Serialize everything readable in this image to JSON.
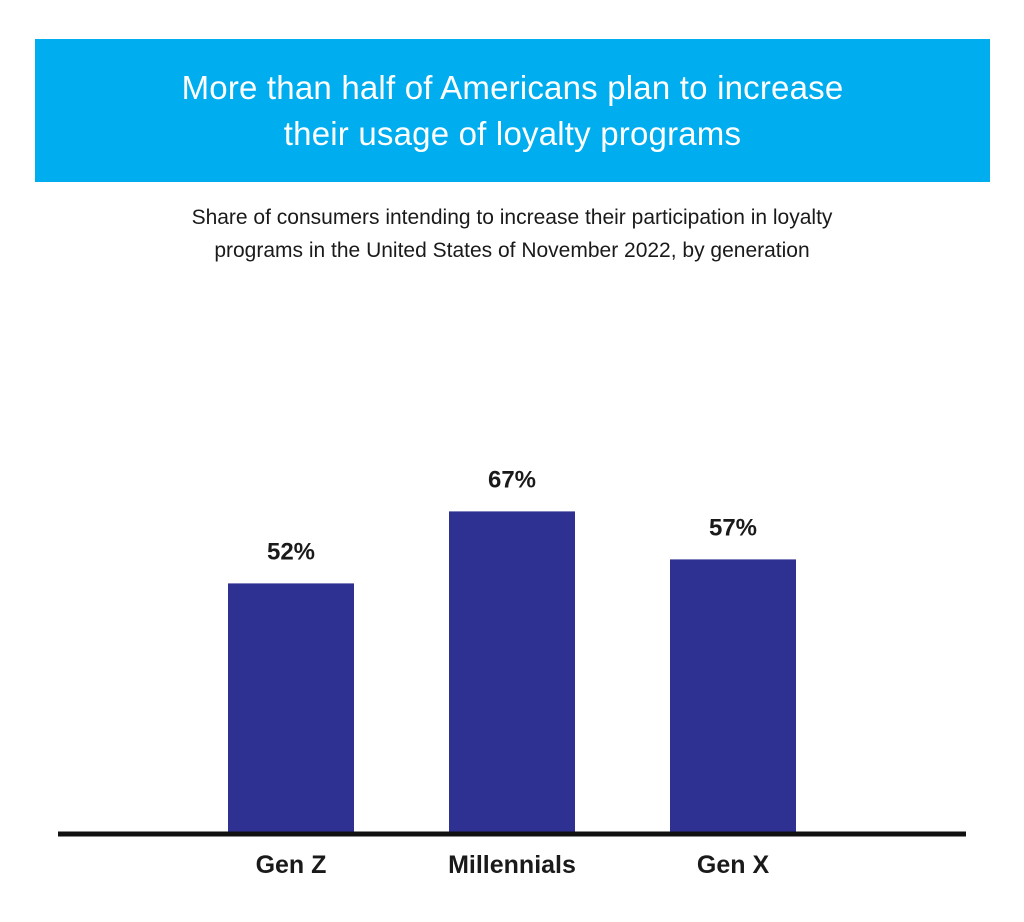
{
  "header": {
    "title_line1": "More than half of Americans plan to increase",
    "title_line2": "their usage of loyalty programs",
    "subtitle_line1": "Share of consumers intending to increase their participation in loyalty",
    "subtitle_line2": "programs in the United States of November 2022, by generation"
  },
  "colors": {
    "banner": "#00aeef",
    "bar": "#2e3192",
    "axis": "#111111"
  },
  "chart_data": {
    "type": "bar",
    "title": "More than half of Americans plan to increase their usage of loyalty programs",
    "subtitle": "Share of consumers intending to increase their participation in loyalty programs in the United States of November 2022, by generation",
    "categories": [
      "Gen Z",
      "Millennials",
      "Gen X"
    ],
    "values": [
      52,
      67,
      57
    ],
    "value_labels": [
      "52%",
      "67%",
      "57%"
    ],
    "xlabel": "",
    "ylabel": "",
    "ylim": [
      0,
      100
    ],
    "grid": false,
    "legend": "none"
  }
}
